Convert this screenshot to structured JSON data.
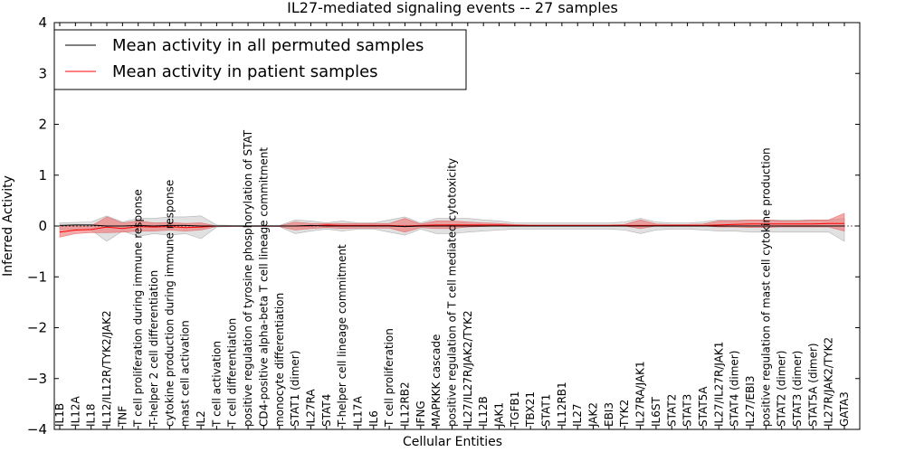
{
  "chart_data": {
    "type": "line",
    "title": "IL27-mediated signaling events -- 27 samples",
    "xlabel": "Cellular Entities",
    "ylabel": "Inferred Activity",
    "ylim": [
      -4,
      4
    ],
    "yticks": [
      -4,
      -3,
      -2,
      -1,
      0,
      1,
      2,
      3,
      4
    ],
    "ytick_labels": [
      "−4",
      "−3",
      "−2",
      "−1",
      "0",
      "1",
      "2",
      "3",
      "4"
    ],
    "grid": false,
    "legend_position": "top-left",
    "legend": [
      {
        "label": "Mean activity in all permuted samples",
        "color": "#000000"
      },
      {
        "label": "Mean activity in patient samples",
        "color": "#ff0000"
      }
    ],
    "categories": [
      "IL1B",
      "IL12A",
      "IL18",
      "IL12/IL12R/TYK2/JAK2",
      "TNF",
      "T cell proliferation during immune response",
      "T-helper 2 cell differentiation",
      "cytokine production during immune response",
      "mast cell activation",
      "IL2",
      "T cell activation",
      "T cell differentiation",
      "positive regulation of tyrosine phosphorylation of STAT",
      "CD4-positive alpha-beta T cell lineage commitment",
      "monocyte differentiation",
      "STAT1 (dimer)",
      "IL27RA",
      "STAT4",
      "T-helper cell lineage commitment",
      "IL17A",
      "IL6",
      "T cell proliferation",
      "IL12RB2",
      "IFNG",
      "MAPKKK cascade",
      "positive regulation of T cell mediated cytotoxicity",
      "IL27/IL27R/JAK2/TYK2",
      "IL12B",
      "JAK1",
      "TGFB1",
      "TBX21",
      "STAT1",
      "IL12RB1",
      "IL27",
      "JAK2",
      "EBI3",
      "TYK2",
      "IL27RA/JAK1",
      "IL6ST",
      "STAT2",
      "STAT3",
      "STAT5A",
      "IL27/IL27R/JAK1",
      "STAT4 (dimer)",
      "IL27/EBI3",
      "positive regulation of mast cell cytokine production",
      "STAT2 (dimer)",
      "STAT3 (dimer)",
      "STAT5A (dimer)",
      "IL27R/JAK2/TYK2",
      "GATA3"
    ],
    "series": [
      {
        "name": "Mean activity in all permuted samples",
        "color": "#000000",
        "values": [
          0.01,
          0.02,
          0.02,
          0.0,
          0.0,
          0.01,
          0.0,
          0.01,
          0.01,
          0.0,
          0.0,
          0.0,
          0.0,
          0.0,
          0.0,
          0.0,
          0.01,
          0.0,
          0.0,
          0.0,
          0.0,
          0.0,
          -0.01,
          0.0,
          0.0,
          0.0,
          0.0,
          0.0,
          0.0,
          0.0,
          0.0,
          0.0,
          0.0,
          0.0,
          0.0,
          0.0,
          0.0,
          0.0,
          0.0,
          0.0,
          0.0,
          0.0,
          0.0,
          0.0,
          0.0,
          0.0,
          0.0,
          0.0,
          0.0,
          0.0,
          0.0
        ],
        "band_upper": [
          0.06,
          0.07,
          0.08,
          0.2,
          0.08,
          0.15,
          0.15,
          0.18,
          0.18,
          0.2,
          0.02,
          0.01,
          0.01,
          0.01,
          0.01,
          0.12,
          0.1,
          0.06,
          0.1,
          0.06,
          0.06,
          0.12,
          0.18,
          0.06,
          0.15,
          0.15,
          0.15,
          0.12,
          0.1,
          0.06,
          0.06,
          0.06,
          0.06,
          0.06,
          0.06,
          0.06,
          0.08,
          0.15,
          0.08,
          0.06,
          0.06,
          0.08,
          0.12,
          0.12,
          0.12,
          0.12,
          0.12,
          0.12,
          0.12,
          0.12,
          0.15
        ],
        "band_lower": [
          -0.06,
          -0.07,
          -0.08,
          -0.3,
          -0.1,
          -0.2,
          -0.15,
          -0.18,
          -0.15,
          -0.25,
          -0.02,
          -0.01,
          -0.01,
          -0.01,
          -0.01,
          -0.15,
          -0.1,
          -0.06,
          -0.1,
          -0.06,
          -0.06,
          -0.12,
          -0.18,
          -0.06,
          -0.15,
          -0.15,
          -0.12,
          -0.1,
          -0.08,
          -0.06,
          -0.06,
          -0.06,
          -0.06,
          -0.06,
          -0.06,
          -0.06,
          -0.08,
          -0.15,
          -0.08,
          -0.06,
          -0.06,
          -0.08,
          -0.1,
          -0.1,
          -0.12,
          -0.12,
          -0.12,
          -0.12,
          -0.12,
          -0.12,
          -0.3
        ]
      },
      {
        "name": "Mean activity in patient samples",
        "color": "#ff0000",
        "values": [
          -0.12,
          -0.08,
          -0.07,
          -0.02,
          -0.05,
          -0.01,
          -0.02,
          -0.01,
          -0.03,
          -0.02,
          0.0,
          0.0,
          0.0,
          0.0,
          0.0,
          0.0,
          0.0,
          0.02,
          0.01,
          0.01,
          0.01,
          0.01,
          0.0,
          0.01,
          0.02,
          0.02,
          0.02,
          0.02,
          0.02,
          0.01,
          0.01,
          0.01,
          0.01,
          0.01,
          0.01,
          0.01,
          0.01,
          0.01,
          0.01,
          0.01,
          0.01,
          0.01,
          0.02,
          0.03,
          0.04,
          0.04,
          0.04,
          0.04,
          0.04,
          0.05,
          0.05
        ],
        "band_upper": [
          0.0,
          0.0,
          0.0,
          0.18,
          0.06,
          0.1,
          0.06,
          0.07,
          0.05,
          0.06,
          0.0,
          0.0,
          0.0,
          0.0,
          0.0,
          0.08,
          0.05,
          0.05,
          0.05,
          0.05,
          0.05,
          0.05,
          0.15,
          0.04,
          0.1,
          0.1,
          0.08,
          0.06,
          0.05,
          0.03,
          0.02,
          0.02,
          0.02,
          0.02,
          0.02,
          0.02,
          0.03,
          0.12,
          0.04,
          0.03,
          0.03,
          0.04,
          0.1,
          0.1,
          0.12,
          0.12,
          0.1,
          0.1,
          0.12,
          0.12,
          0.25
        ],
        "band_lower": [
          -0.22,
          -0.15,
          -0.13,
          -0.13,
          -0.12,
          -0.1,
          -0.1,
          -0.08,
          -0.1,
          -0.08,
          -0.01,
          -0.01,
          -0.01,
          -0.01,
          -0.01,
          -0.08,
          -0.05,
          -0.03,
          -0.05,
          -0.04,
          -0.04,
          -0.04,
          -0.12,
          -0.03,
          -0.05,
          -0.05,
          -0.02,
          -0.01,
          0.0,
          0.0,
          0.0,
          0.0,
          0.0,
          0.0,
          0.0,
          0.0,
          0.0,
          -0.05,
          0.0,
          0.0,
          0.0,
          0.0,
          -0.02,
          -0.02,
          -0.03,
          -0.03,
          -0.02,
          -0.02,
          -0.02,
          -0.02,
          -0.1
        ]
      }
    ]
  }
}
